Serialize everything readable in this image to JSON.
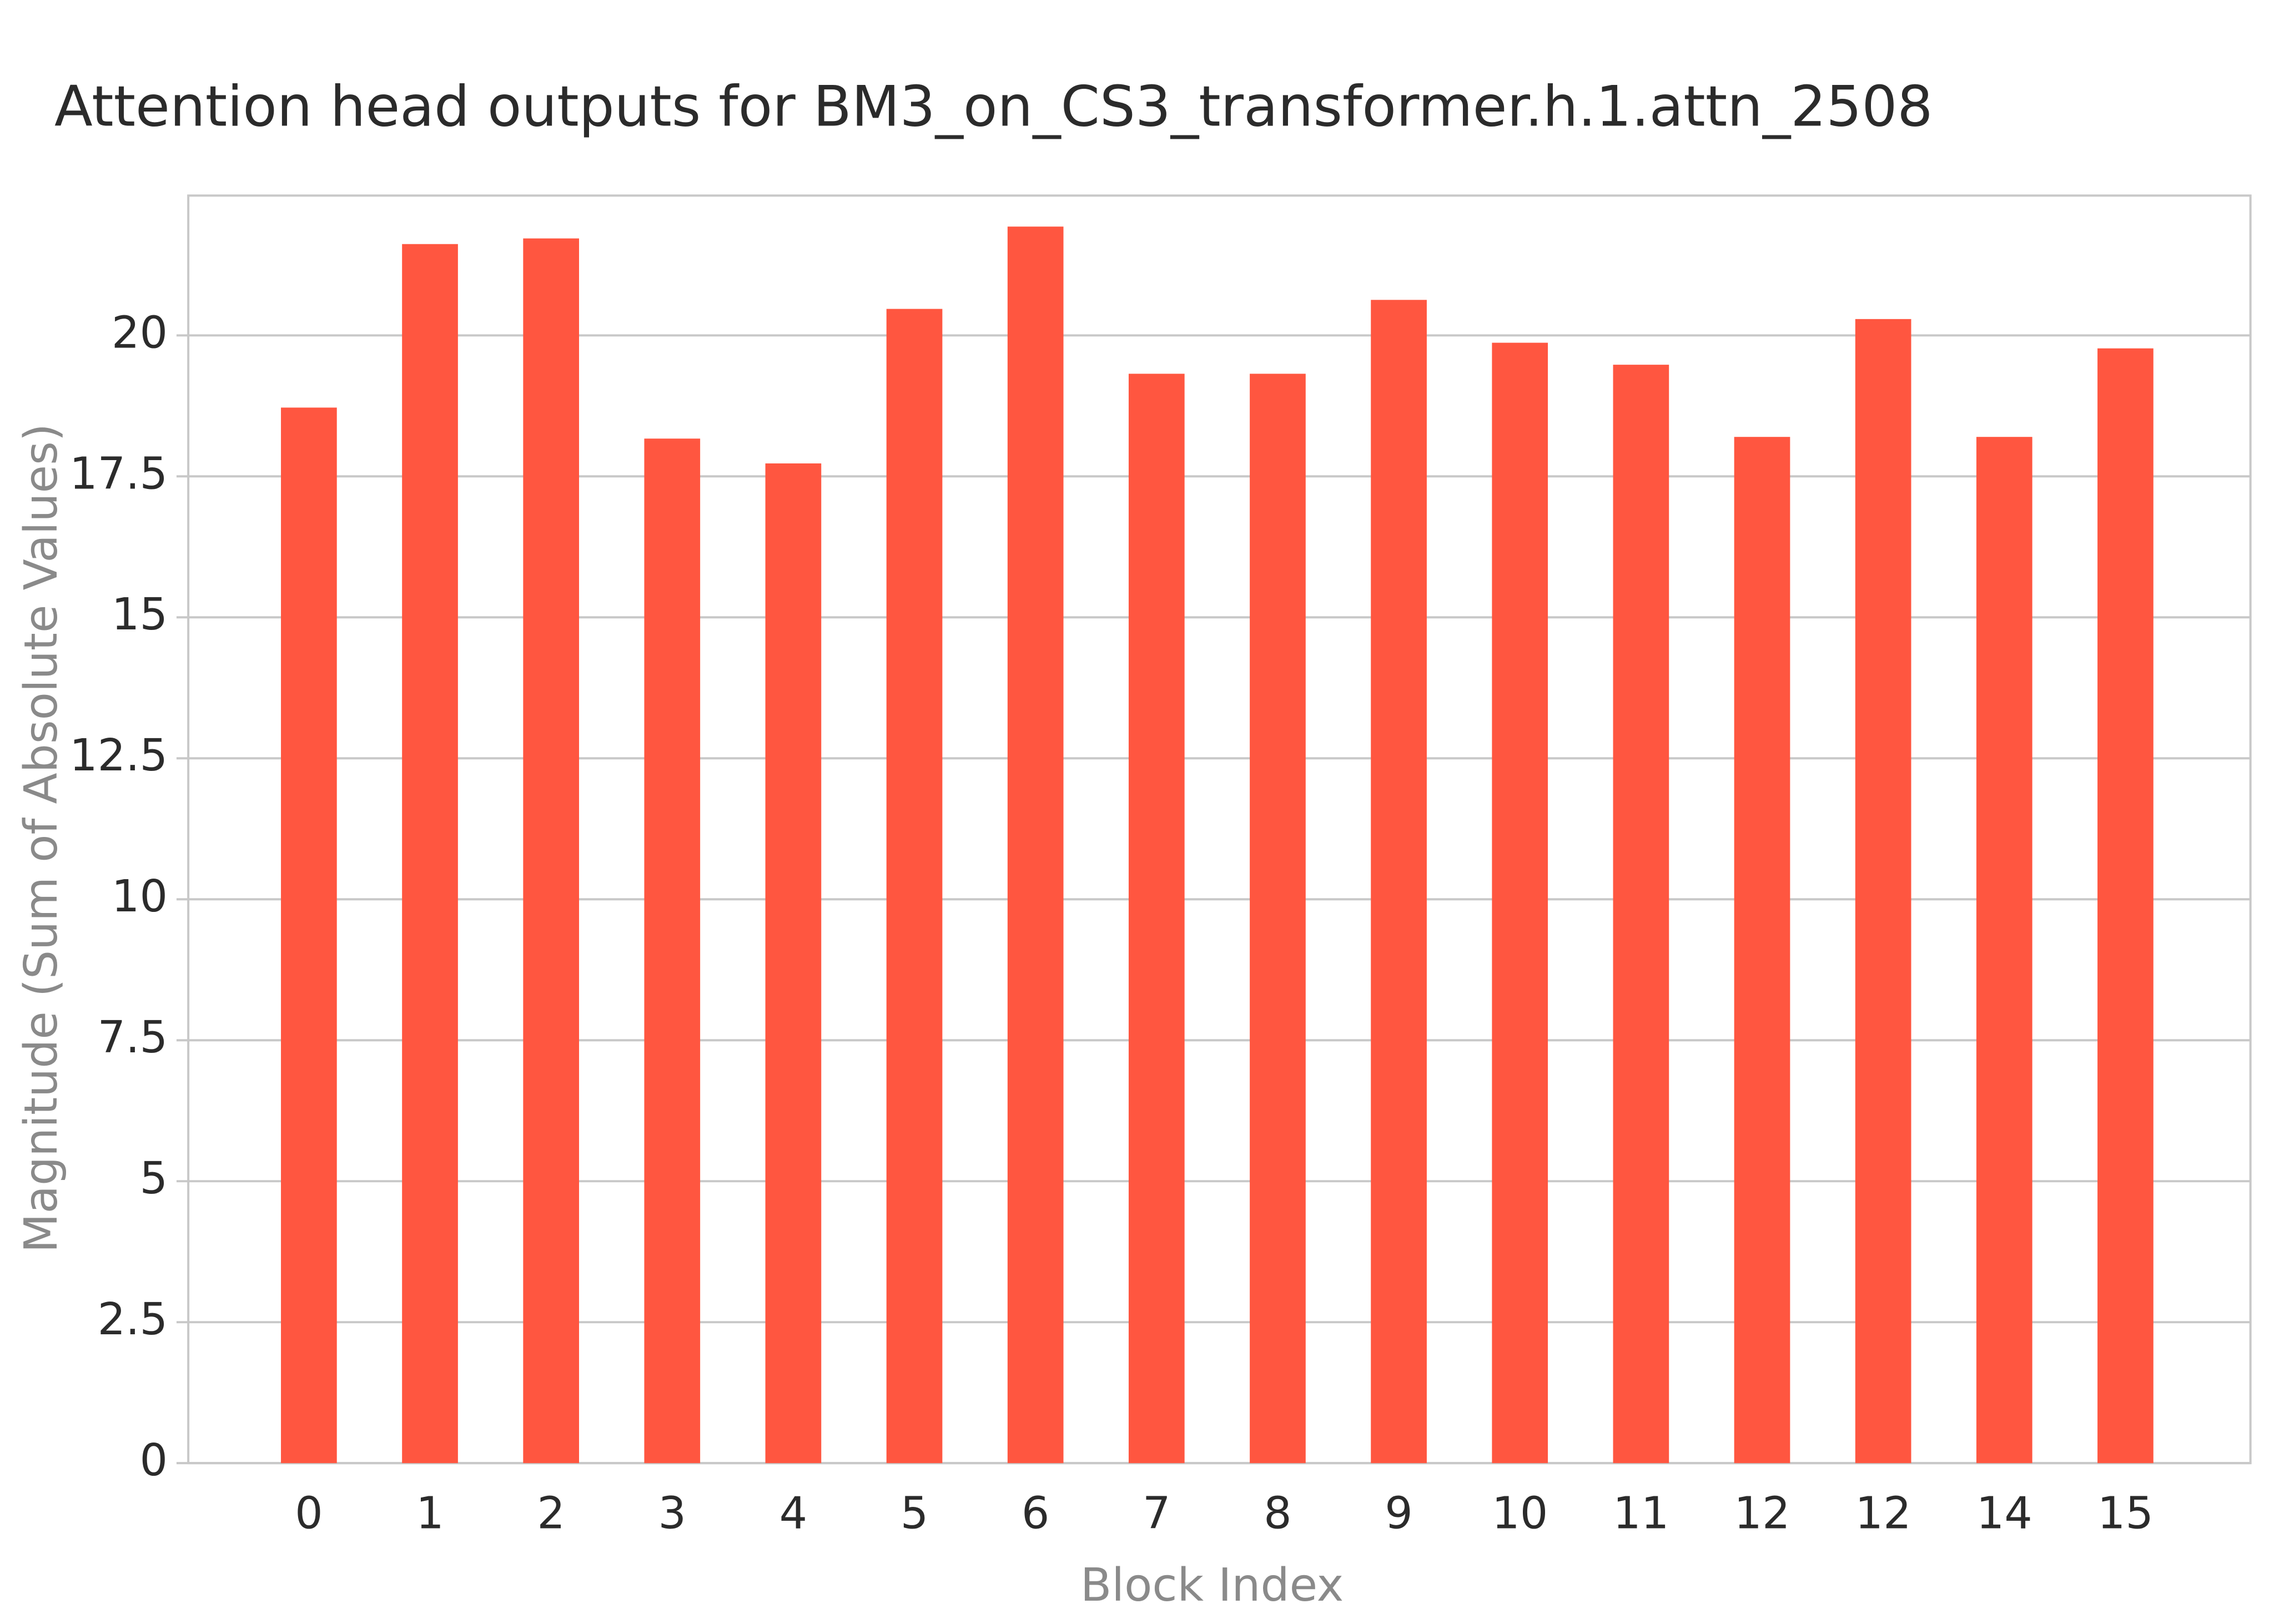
{
  "chart_data": {
    "type": "bar",
    "title": "Attention head outputs for BM3_on_CS3_transformer.h.1.attn_2508",
    "x_label": "Block Index",
    "y_label": "Magnitude (Sum of Absolute Values)",
    "categories": [
      "0",
      "1",
      "2",
      "3",
      "4",
      "5",
      "6",
      "7",
      "8",
      "9",
      "10",
      "11",
      "12",
      "12",
      "14",
      "15"
    ],
    "values": [
      18.72,
      21.62,
      21.72,
      18.17,
      17.73,
      20.47,
      21.93,
      19.32,
      19.32,
      20.63,
      19.87,
      19.48,
      18.2,
      20.29,
      18.2,
      19.77
    ],
    "color": "#ff5640",
    "ylim": [
      0,
      22.48
    ],
    "yticks": [
      0,
      2.5,
      5,
      7.5,
      10,
      12.5,
      15,
      17.5,
      20
    ],
    "grid": true
  }
}
